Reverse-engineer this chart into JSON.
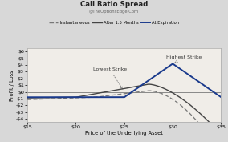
{
  "title": "Call Ratio Spread",
  "subtitle": "@TheOptionsEdge.Com",
  "xlabel": "Price of the Underlying Asset",
  "ylabel": "Profit / Loss",
  "background_color": "#d8d8d8",
  "plot_bg_color": "#f0ede8",
  "x_min": 15,
  "x_max": 35,
  "y_min": -4.5,
  "y_max": 6.5,
  "lowest_strike": 25,
  "highest_strike": 30,
  "initial_cost": -0.8,
  "legend_entries": [
    "Instantaneous",
    "After 1.5 Months",
    "At Expiration"
  ],
  "annotation_lowest": "Lowest Strike",
  "annotation_highest": "Highest Strike",
  "color_instantaneous": "#777777",
  "color_after": "#444444",
  "color_expiration": "#1a3a8c",
  "xtick_labels": [
    "$15",
    "$20",
    "$25",
    "$30",
    "$35"
  ],
  "xtick_vals": [
    15,
    20,
    25,
    30,
    35
  ],
  "ytick_labels": [
    "$6",
    "$5",
    "$4",
    "$3",
    "$2",
    "$1",
    "$0",
    "-$1",
    "-$2",
    "-$3",
    "-$4"
  ],
  "ytick_vals": [
    6,
    5,
    4,
    3,
    2,
    1,
    0,
    -1,
    -2,
    -3,
    -4
  ]
}
